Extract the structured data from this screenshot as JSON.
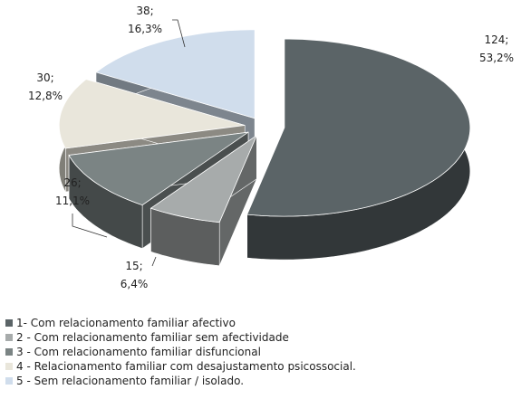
{
  "chart_data": {
    "type": "pie3d",
    "categories": [
      "1-  Com relacionamento familiar afectivo",
      "2 - Com relacionamento familiar sem afectividade",
      "3 - Com relacionamento familiar disfuncional",
      "4 - Relacionamento familiar com desajustamento psicossocial.",
      "5 - Sem relacionamento familiar / isolado."
    ],
    "values": [
      124,
      15,
      26,
      30,
      38
    ],
    "value_labels": [
      "124;",
      "15;",
      "26;",
      "30;",
      "38;"
    ],
    "percentages": [
      53.2,
      6.4,
      11.1,
      12.8,
      16.3
    ],
    "percentage_labels": [
      "53,2%",
      "6,4%",
      "11,1%",
      "12,8%",
      "16,3%"
    ],
    "colors": [
      "#5b6467",
      "#a7abab",
      "#7b8484",
      "#e9e6db",
      "#d0ddec"
    ],
    "legend": "bottom-left"
  }
}
